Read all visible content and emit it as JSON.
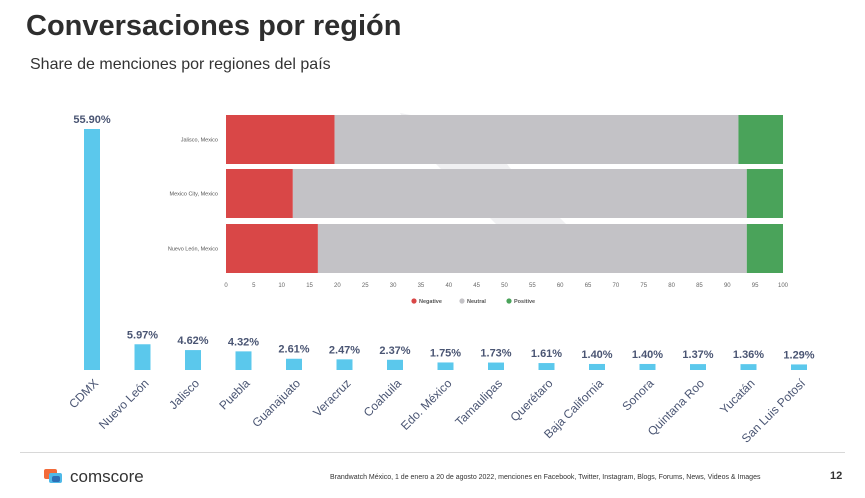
{
  "header": {
    "title": "Conversaciones por región",
    "subtitle": "Share de menciones por regiones del país"
  },
  "chart_data": [
    {
      "type": "bar",
      "title": "Share de menciones por regiones del país",
      "categories": [
        "CDMX",
        "Nuevo León",
        "Jalisco",
        "Puebla",
        "Guanajuato",
        "Veracruz",
        "Coahuila",
        "Edo. México",
        "Tamaulipas",
        "Querétaro",
        "Baja California",
        "Sonora",
        "Quintana Roo",
        "Yucatán",
        "San Luis Potosí"
      ],
      "values": [
        55.9,
        5.97,
        4.62,
        4.32,
        2.61,
        2.47,
        2.37,
        1.75,
        1.73,
        1.61,
        1.4,
        1.4,
        1.37,
        1.36,
        1.29
      ],
      "data_labels": [
        "55.90%",
        "5.97%",
        "4.62%",
        "4.32%",
        "2.61%",
        "2.47%",
        "2.37%",
        "1.75%",
        "1.73%",
        "1.61%",
        "1.40%",
        "1.40%",
        "1.37%",
        "1.36%",
        "1.29%"
      ],
      "ylim": [
        0,
        55.9
      ],
      "color": "#5bc8ec",
      "xlabel": "",
      "ylabel": ""
    },
    {
      "type": "bar",
      "orientation": "horizontal",
      "stacked": true,
      "categories": [
        "Jalisco, Mexico",
        "Mexico City, Mexico",
        "Nuevo León, Mexico"
      ],
      "series": [
        {
          "name": "Negative",
          "color": "#d94747",
          "values": [
            19.5,
            12,
            16.5
          ]
        },
        {
          "name": "Neutral",
          "color": "#c3c2c6",
          "values": [
            72.5,
            81.5,
            77
          ]
        },
        {
          "name": "Positive",
          "color": "#4aa35a",
          "values": [
            8,
            6.5,
            6.5
          ]
        }
      ],
      "xlim": [
        0,
        100
      ],
      "xticks": [
        "0",
        "5",
        "10",
        "15",
        "20",
        "25",
        "30",
        "35",
        "40",
        "45",
        "50",
        "55",
        "60",
        "65",
        "70",
        "75",
        "80",
        "85",
        "90",
        "95",
        "100"
      ],
      "legend": "bottom-center"
    }
  ],
  "footer": {
    "brand": "comscore",
    "source": "Brandwatch México, 1 de enero a 20 de agosto 2022, menciones en Facebook, Twitter, Instagram, Blogs, Forums, News, Videos & Images",
    "page_number": "12",
    "logo_colors": [
      "#f26b3a",
      "#4fb9e8",
      "#2d6fb6"
    ]
  }
}
